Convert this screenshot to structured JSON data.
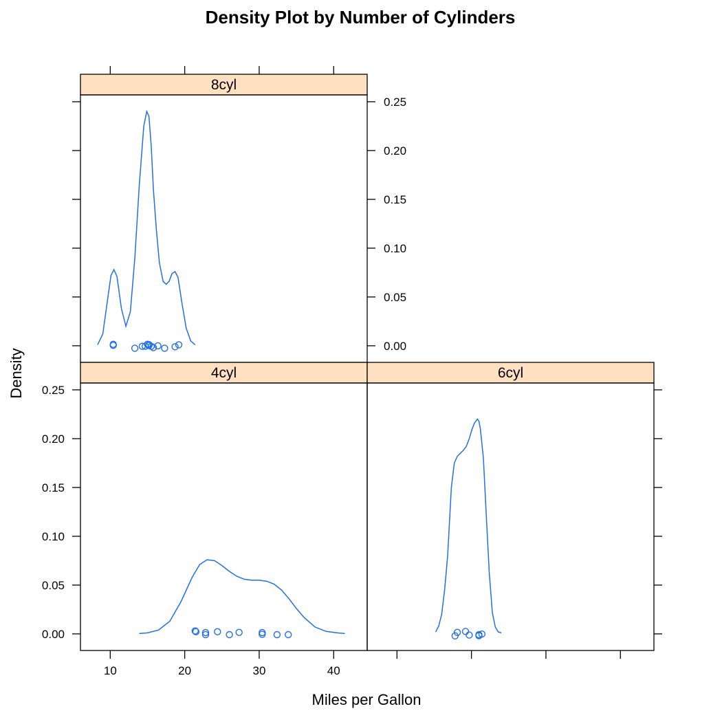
{
  "chart_data": {
    "type": "line",
    "title": "Density Plot by Number of Cylinders",
    "xlabel": "Miles per Gallon",
    "ylabel": "Density",
    "xlim": [
      6,
      44.5
    ],
    "ylim": [
      -0.017,
      0.257
    ],
    "x_ticks": [
      10,
      20,
      30,
      40
    ],
    "x_tick_labels": [
      "10",
      "20",
      "30",
      "40"
    ],
    "y_ticks": [
      0,
      0.05,
      0.1,
      0.15,
      0.2,
      0.25
    ],
    "y_tick_labels": [
      "0.00",
      "0.05",
      "0.10",
      "0.15",
      "0.20",
      "0.25"
    ],
    "colors": {
      "series": "#1f6fe8",
      "strip": "#ffe0c0"
    },
    "panels": [
      {
        "name": "8cyl",
        "density": {
          "x": [
            8.3,
            9.0,
            9.6,
            10.1,
            10.5,
            10.9,
            11.5,
            12.1,
            12.7,
            13.3,
            13.9,
            14.5,
            14.9,
            15.2,
            15.5,
            15.8,
            16.2,
            16.6,
            17.1,
            17.5,
            17.9,
            18.3,
            18.7,
            19.1,
            19.6,
            20.2,
            20.8,
            21.4
          ],
          "y": [
            0.001,
            0.012,
            0.045,
            0.072,
            0.078,
            0.071,
            0.038,
            0.02,
            0.035,
            0.09,
            0.165,
            0.225,
            0.24,
            0.235,
            0.205,
            0.16,
            0.118,
            0.085,
            0.066,
            0.063,
            0.066,
            0.074,
            0.076,
            0.07,
            0.045,
            0.018,
            0.005,
            0.001
          ]
        },
        "points": {
          "x": [
            10.4,
            10.4,
            13.3,
            14.3,
            14.7,
            15.0,
            15.2,
            15.2,
            15.5,
            15.8,
            16.4,
            17.3,
            18.7,
            19.2
          ],
          "y": [
            0.0015,
            0.0005,
            -0.0025,
            -0.0005,
            -0.0005,
            0.0015,
            0.0012,
            0.0003,
            -0.0005,
            -0.0018,
            0.0,
            -0.0025,
            -0.001,
            0.001
          ]
        }
      },
      {
        "name": "4cyl",
        "density": {
          "x": [
            13.9,
            15.0,
            16.5,
            18.0,
            19.5,
            21.0,
            22.0,
            23.0,
            24.0,
            25.0,
            26.0,
            27.0,
            28.0,
            29.0,
            30.0,
            31.0,
            32.0,
            33.0,
            34.0,
            35.0,
            36.0,
            37.5,
            39.0,
            40.5,
            41.5
          ],
          "y": [
            0.0005,
            0.001,
            0.004,
            0.013,
            0.033,
            0.058,
            0.071,
            0.076,
            0.075,
            0.07,
            0.064,
            0.059,
            0.056,
            0.055,
            0.055,
            0.054,
            0.051,
            0.045,
            0.036,
            0.026,
            0.017,
            0.007,
            0.0025,
            0.001,
            0.0005
          ]
        },
        "points": {
          "x": [
            21.4,
            21.5,
            22.8,
            22.8,
            24.4,
            26.0,
            27.3,
            30.4,
            30.4,
            32.4,
            33.9
          ],
          "y": [
            0.003,
            0.0022,
            0.0013,
            -0.0007,
            0.0022,
            -0.0008,
            0.0015,
            0.0013,
            -0.0004,
            -0.0008,
            -0.0008
          ]
        }
      },
      {
        "name": "6cyl",
        "density": {
          "x": [
            15.2,
            15.6,
            16.0,
            16.4,
            16.8,
            17.3,
            17.7,
            18.1,
            18.5,
            18.9,
            19.3,
            19.7,
            20.1,
            20.4,
            20.8,
            21.0,
            21.2,
            21.6,
            22.0,
            22.4,
            22.8,
            23.2,
            23.6,
            24.0
          ],
          "y": [
            0.002,
            0.008,
            0.02,
            0.045,
            0.08,
            0.15,
            0.175,
            0.182,
            0.185,
            0.188,
            0.192,
            0.2,
            0.21,
            0.216,
            0.22,
            0.218,
            0.21,
            0.18,
            0.12,
            0.062,
            0.022,
            0.007,
            0.002,
            0.001
          ]
        },
        "points": {
          "x": [
            17.8,
            18.1,
            19.2,
            19.7,
            21.0,
            21.0,
            21.4
          ],
          "y": [
            -0.002,
            0.0015,
            0.0025,
            -0.0012,
            -0.0018,
            -0.0008,
            -0.0002
          ]
        }
      }
    ]
  }
}
